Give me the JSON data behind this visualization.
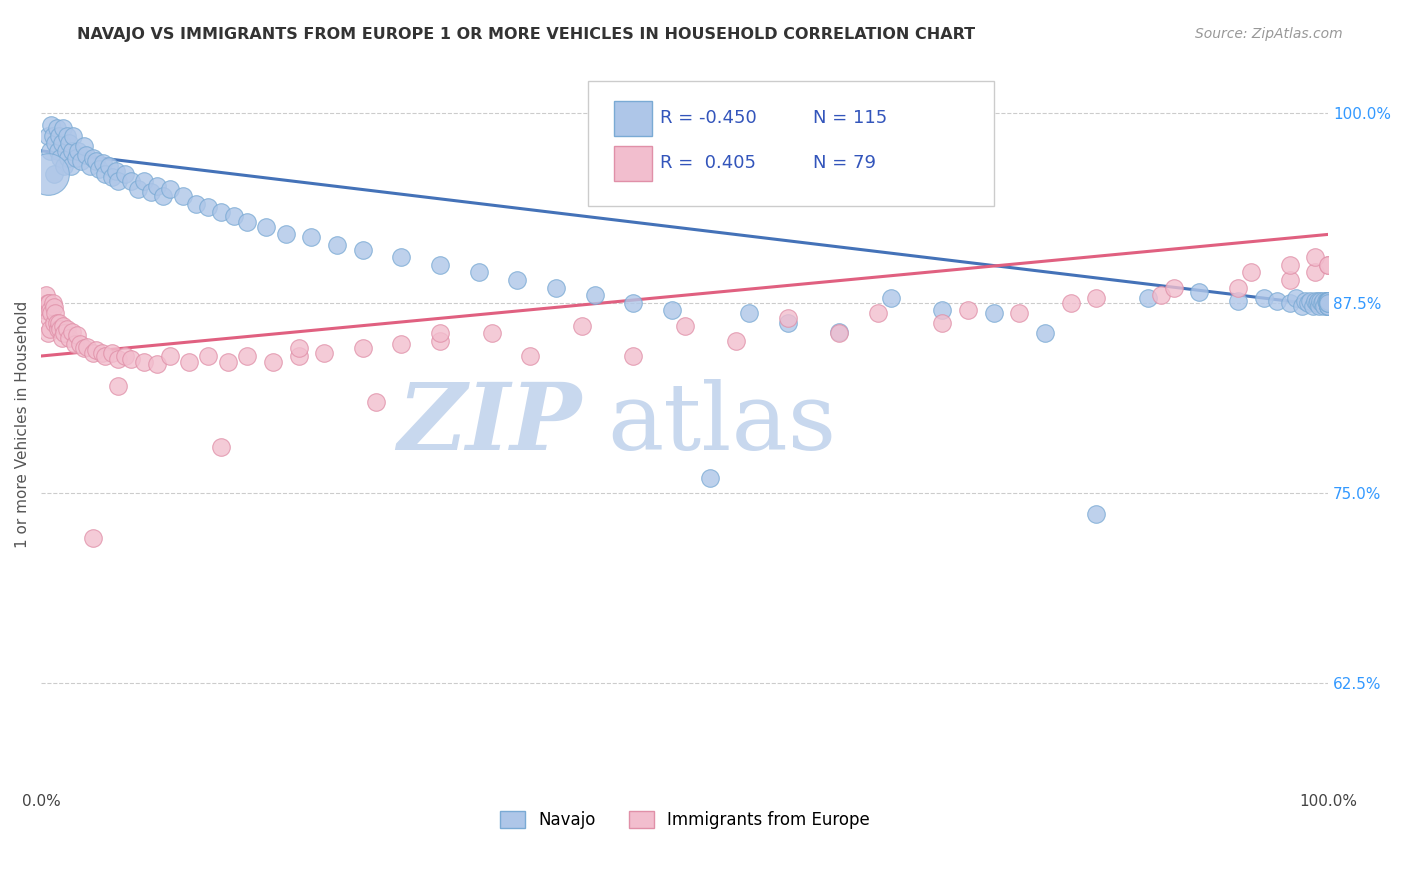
{
  "title": "NAVAJO VS IMMIGRANTS FROM EUROPE 1 OR MORE VEHICLES IN HOUSEHOLD CORRELATION CHART",
  "source_text": "Source: ZipAtlas.com",
  "ylabel": "1 or more Vehicles in Household",
  "watermark": "ZIPatlas",
  "xlim": [
    0.0,
    1.0
  ],
  "ylim": [
    0.555,
    1.035
  ],
  "ytick_positions": [
    0.625,
    0.75,
    0.875,
    1.0
  ],
  "yticklabels": [
    "62.5%",
    "75.0%",
    "87.5%",
    "100.0%"
  ],
  "navajo_R": -0.45,
  "navajo_N": 115,
  "europe_R": 0.405,
  "europe_N": 79,
  "navajo_color": "#aec6e8",
  "navajo_edge": "#7aaad4",
  "europe_color": "#f2bece",
  "europe_edge": "#e090a8",
  "trend_navajo_color": "#4472b8",
  "trend_europe_color": "#e06080",
  "navajo_trend_x0": 0.0,
  "navajo_trend_y0": 0.975,
  "navajo_trend_x1": 1.0,
  "navajo_trend_y1": 0.873,
  "europe_trend_x0": 0.0,
  "europe_trend_y0": 0.84,
  "europe_trend_x1": 1.0,
  "europe_trend_y1": 0.92,
  "navajo_x": [
    0.005,
    0.007,
    0.008,
    0.009,
    0.01,
    0.011,
    0.012,
    0.013,
    0.014,
    0.015,
    0.016,
    0.017,
    0.018,
    0.019,
    0.02,
    0.021,
    0.022,
    0.023,
    0.024,
    0.025,
    0.027,
    0.029,
    0.031,
    0.033,
    0.035,
    0.038,
    0.04,
    0.043,
    0.045,
    0.048,
    0.05,
    0.053,
    0.055,
    0.058,
    0.06,
    0.065,
    0.07,
    0.075,
    0.08,
    0.085,
    0.09,
    0.095,
    0.1,
    0.11,
    0.12,
    0.13,
    0.14,
    0.15,
    0.16,
    0.175,
    0.19,
    0.21,
    0.23,
    0.25,
    0.28,
    0.31,
    0.34,
    0.37,
    0.4,
    0.43,
    0.46,
    0.49,
    0.52,
    0.55,
    0.58,
    0.62,
    0.66,
    0.7,
    0.74,
    0.78,
    0.82,
    0.86,
    0.9,
    0.93,
    0.95,
    0.96,
    0.97,
    0.975,
    0.98,
    0.982,
    0.984,
    0.986,
    0.988,
    0.99,
    0.991,
    0.992,
    0.993,
    0.994,
    0.995,
    0.996,
    0.997,
    0.998,
    0.999,
    0.999,
    1.0,
    1.0,
    1.0,
    1.0,
    1.0,
    1.0,
    1.0,
    1.0,
    1.0,
    1.0,
    1.0,
    1.0,
    1.0,
    1.0,
    1.0,
    1.0,
    1.0,
    1.0,
    1.0,
    1.0,
    1.0
  ],
  "navajo_y": [
    0.985,
    0.975,
    0.992,
    0.985,
    0.96,
    0.98,
    0.99,
    0.975,
    0.985,
    0.97,
    0.98,
    0.99,
    0.965,
    0.975,
    0.985,
    0.97,
    0.98,
    0.965,
    0.975,
    0.985,
    0.97,
    0.975,
    0.968,
    0.978,
    0.972,
    0.965,
    0.97,
    0.968,
    0.963,
    0.967,
    0.96,
    0.965,
    0.958,
    0.962,
    0.955,
    0.96,
    0.955,
    0.95,
    0.955,
    0.948,
    0.952,
    0.945,
    0.95,
    0.945,
    0.94,
    0.938,
    0.935,
    0.932,
    0.928,
    0.925,
    0.92,
    0.918,
    0.913,
    0.91,
    0.905,
    0.9,
    0.895,
    0.89,
    0.885,
    0.88,
    0.875,
    0.87,
    0.76,
    0.868,
    0.862,
    0.856,
    0.878,
    0.87,
    0.868,
    0.855,
    0.736,
    0.878,
    0.882,
    0.876,
    0.878,
    0.876,
    0.875,
    0.878,
    0.873,
    0.876,
    0.875,
    0.876,
    0.873,
    0.876,
    0.875,
    0.876,
    0.873,
    0.876,
    0.875,
    0.876,
    0.873,
    0.876,
    0.875,
    0.876,
    0.873,
    0.875,
    0.876,
    0.873,
    0.875,
    0.876,
    0.875,
    0.876,
    0.873,
    0.876,
    0.875,
    0.876,
    0.873,
    0.875,
    0.876,
    0.875,
    0.876,
    0.873,
    0.875,
    0.876,
    0.875
  ],
  "navajo_large_x": [
    0.005
  ],
  "navajo_large_y": [
    0.96
  ],
  "europe_x": [
    0.003,
    0.004,
    0.005,
    0.005,
    0.006,
    0.006,
    0.007,
    0.007,
    0.008,
    0.009,
    0.01,
    0.01,
    0.011,
    0.012,
    0.013,
    0.014,
    0.015,
    0.016,
    0.017,
    0.018,
    0.02,
    0.022,
    0.024,
    0.026,
    0.028,
    0.03,
    0.033,
    0.036,
    0.04,
    0.043,
    0.047,
    0.05,
    0.055,
    0.06,
    0.065,
    0.07,
    0.08,
    0.09,
    0.1,
    0.115,
    0.13,
    0.145,
    0.16,
    0.18,
    0.2,
    0.22,
    0.25,
    0.28,
    0.31,
    0.35,
    0.06,
    0.2,
    0.31,
    0.42,
    0.5,
    0.58,
    0.65,
    0.72,
    0.8,
    0.87,
    0.93,
    0.97,
    0.99,
    1.0,
    0.04,
    0.14,
    0.26,
    0.38,
    0.46,
    0.54,
    0.62,
    0.7,
    0.76,
    0.82,
    0.88,
    0.94,
    0.97,
    0.99,
    1.0
  ],
  "europe_y": [
    0.87,
    0.88,
    0.855,
    0.875,
    0.865,
    0.875,
    0.858,
    0.87,
    0.868,
    0.875,
    0.862,
    0.872,
    0.868,
    0.862,
    0.858,
    0.862,
    0.858,
    0.852,
    0.86,
    0.855,
    0.858,
    0.852,
    0.856,
    0.848,
    0.854,
    0.848,
    0.845,
    0.846,
    0.842,
    0.844,
    0.842,
    0.84,
    0.842,
    0.838,
    0.84,
    0.838,
    0.836,
    0.835,
    0.84,
    0.836,
    0.84,
    0.836,
    0.84,
    0.836,
    0.84,
    0.842,
    0.845,
    0.848,
    0.85,
    0.855,
    0.82,
    0.845,
    0.855,
    0.86,
    0.86,
    0.865,
    0.868,
    0.87,
    0.875,
    0.88,
    0.885,
    0.89,
    0.895,
    0.9,
    0.72,
    0.78,
    0.81,
    0.84,
    0.84,
    0.85,
    0.855,
    0.862,
    0.868,
    0.878,
    0.885,
    0.895,
    0.9,
    0.905,
    0.9
  ]
}
